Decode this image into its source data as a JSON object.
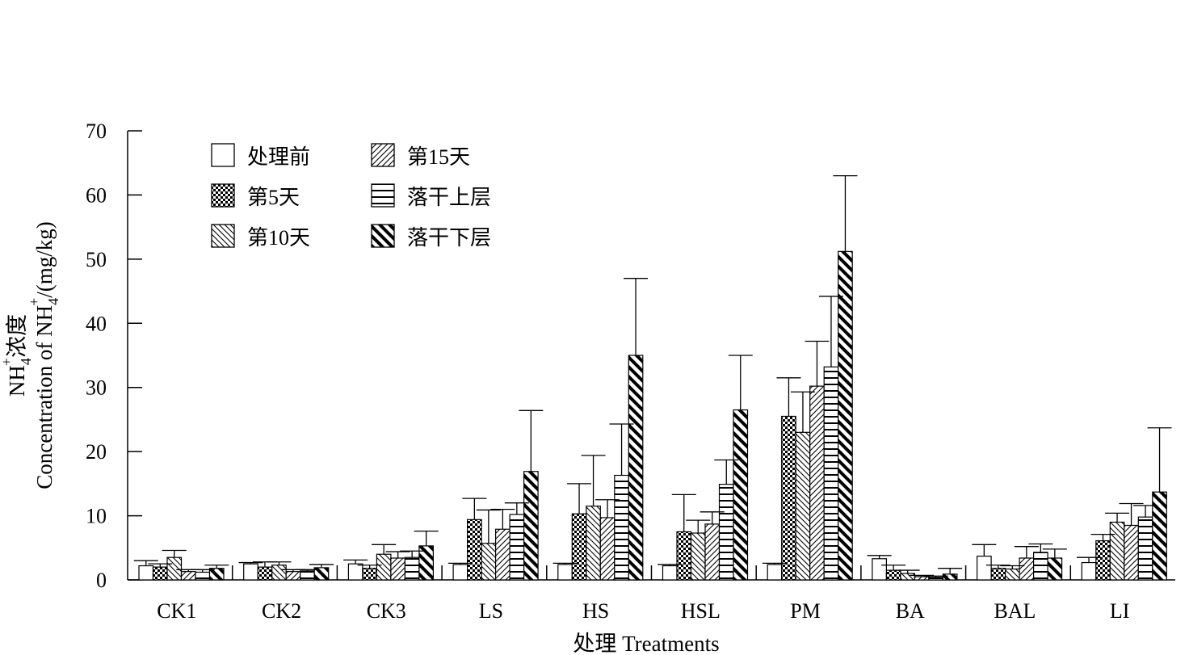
{
  "chart_data": {
    "type": "bar",
    "title": "",
    "xlabel": "处理 Treatments",
    "ylabel_line1": "NH",
    "ylabel_line1_sub": "4",
    "ylabel_line1_sup": "+",
    "ylabel_line1_tail": "浓度",
    "ylabel_line2": "Concentration of  NH",
    "ylabel_line2_sub": "4",
    "ylabel_line2_sup": "+",
    "ylabel_line2_tail": "/(mg/kg)",
    "ylim": [
      0,
      70
    ],
    "yticks": [
      0,
      10,
      20,
      30,
      40,
      50,
      60,
      70
    ],
    "grid": false,
    "legend_position": "top-left",
    "categories": [
      "CK1",
      "CK2",
      "CK3",
      "LS",
      "HS",
      "HSL",
      "PM",
      "BA",
      "BAL",
      "LI"
    ],
    "series": [
      {
        "name": "处理前",
        "pattern": "none",
        "values": [
          2.2,
          2.5,
          2.5,
          2.4,
          2.4,
          2.2,
          2.4,
          3.3,
          3.7,
          2.7
        ],
        "errors": [
          0.8,
          0.2,
          0.6,
          0.2,
          0.2,
          0.2,
          0.2,
          0.5,
          1.8,
          0.8
        ]
      },
      {
        "name": "第5天",
        "pattern": "checker",
        "values": [
          2.0,
          2.0,
          1.8,
          9.4,
          10.3,
          7.5,
          25.5,
          1.5,
          1.8,
          6.1
        ],
        "errors": [
          0.5,
          0.8,
          0.5,
          3.3,
          4.7,
          5.8,
          6.0,
          0.8,
          0.5,
          1.0
        ]
      },
      {
        "name": "第10天",
        "pattern": "diag-back",
        "values": [
          3.5,
          2.3,
          4.0,
          5.7,
          11.5,
          7.3,
          23.0,
          1.0,
          1.7,
          9.0
        ],
        "errors": [
          1.1,
          0.5,
          1.5,
          5.2,
          7.9,
          2.0,
          6.3,
          0.5,
          0.5,
          1.4
        ]
      },
      {
        "name": "第15天",
        "pattern": "diag-fwd",
        "values": [
          1.3,
          1.3,
          3.4,
          7.9,
          9.7,
          8.7,
          30.2,
          0.5,
          3.4,
          8.5
        ],
        "errors": [
          0.3,
          0.3,
          1.0,
          3.1,
          2.8,
          1.9,
          7.0,
          0.2,
          1.8,
          3.4
        ]
      },
      {
        "name": "落干上层",
        "pattern": "horizontal",
        "values": [
          1.2,
          1.4,
          3.5,
          10.2,
          16.3,
          14.9,
          33.2,
          0.4,
          4.3,
          9.8
        ],
        "errors": [
          0.4,
          0.2,
          1.0,
          1.8,
          8.0,
          3.8,
          11.0,
          0.2,
          1.3,
          1.8
        ]
      },
      {
        "name": "落干下层",
        "pattern": "diag-back-bold",
        "values": [
          1.8,
          1.9,
          5.3,
          16.9,
          35.0,
          26.5,
          51.2,
          0.9,
          3.4,
          13.7
        ],
        "errors": [
          0.5,
          0.5,
          2.3,
          9.5,
          12.0,
          8.5,
          11.8,
          0.9,
          1.4,
          10.0
        ]
      }
    ]
  }
}
